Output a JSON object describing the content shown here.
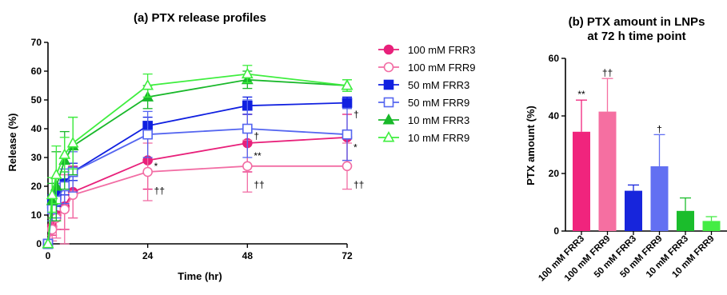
{
  "chart_data": [
    {
      "type": "line",
      "title": "(a) PTX release profiles",
      "xlabel": "Time (hr)",
      "ylabel": "Release (%)",
      "xlim": [
        0,
        72
      ],
      "ylim": [
        0,
        70
      ],
      "xticks": [
        0,
        24,
        48,
        72
      ],
      "yticks": [
        0,
        10,
        20,
        30,
        40,
        50,
        60,
        70
      ],
      "grid": false,
      "legend_position": "right",
      "x": [
        0,
        1,
        2,
        4,
        6,
        24,
        48,
        72
      ],
      "series": [
        {
          "name": "100 mM FRR3",
          "color": "#e8207a",
          "marker": "circle",
          "filled": true,
          "values": [
            0,
            6,
            10,
            13,
            18,
            29,
            35,
            37
          ],
          "errors": [
            0,
            3,
            5,
            8,
            9,
            10,
            10,
            8
          ]
        },
        {
          "name": "100 mM FRR9",
          "color": "#f26da4",
          "marker": "circle",
          "filled": false,
          "values": [
            0,
            5,
            9,
            12,
            17,
            25,
            27,
            27
          ],
          "errors": [
            0,
            4,
            7,
            12,
            8,
            10,
            9,
            8
          ]
        },
        {
          "name": "50 mM FRR3",
          "color": "#1020e0",
          "marker": "square",
          "filled": true,
          "values": [
            0,
            14,
            17,
            21,
            25,
            41,
            48,
            49
          ],
          "errors": [
            0,
            3,
            4,
            4,
            3,
            3,
            3,
            2
          ]
        },
        {
          "name": "50 mM FRR9",
          "color": "#5566f0",
          "marker": "square",
          "filled": false,
          "values": [
            0,
            12,
            15,
            20,
            25,
            38,
            40,
            38
          ],
          "errors": [
            0,
            4,
            6,
            6,
            7,
            8,
            10,
            9
          ]
        },
        {
          "name": "10 mM FRR3",
          "color": "#19b82a",
          "marker": "triangle",
          "filled": true,
          "values": [
            0,
            15,
            20,
            29,
            34,
            51,
            57,
            55
          ],
          "errors": [
            0,
            6,
            12,
            10,
            10,
            4,
            3,
            2
          ]
        },
        {
          "name": "10 mM FRR9",
          "color": "#3fee3f",
          "marker": "triangle",
          "filled": false,
          "values": [
            0,
            17,
            24,
            31,
            35,
            55,
            59,
            55
          ],
          "errors": [
            0,
            6,
            10,
            6,
            9,
            4,
            3,
            2
          ]
        }
      ],
      "annotations": [
        {
          "text": "*",
          "x": 24,
          "y": 27,
          "placement": "right"
        },
        {
          "text": "††",
          "x": 24,
          "y": 18.5,
          "placement": "right"
        },
        {
          "text": "†",
          "x": 48,
          "y": 37.5,
          "placement": "right"
        },
        {
          "text": "**",
          "x": 48,
          "y": 30.5,
          "placement": "right"
        },
        {
          "text": "††",
          "x": 48,
          "y": 20.5,
          "placement": "right"
        },
        {
          "text": "†",
          "x": 72,
          "y": 45,
          "placement": "right"
        },
        {
          "text": "*",
          "x": 72,
          "y": 33.5,
          "placement": "right"
        },
        {
          "text": "††",
          "x": 72,
          "y": 20.5,
          "placement": "right"
        }
      ]
    },
    {
      "type": "bar",
      "title": "(b) PTX amount in LNPs",
      "subtitle": "at 72 h time point",
      "xlabel": "",
      "ylabel": "PTX amount (%)",
      "ylim": [
        0,
        60
      ],
      "yticks": [
        0,
        20,
        40,
        60
      ],
      "grid": false,
      "categories": [
        "100 mM FRR3",
        "100 mM FRR9",
        "50 mM FRR3",
        "50 mM FRR9",
        "10 mM FRR3",
        "10 mM FRR9"
      ],
      "values": [
        34.5,
        41.5,
        14,
        22.5,
        7,
        3.5
      ],
      "errors": [
        11,
        11.5,
        2,
        11,
        4.5,
        1.5
      ],
      "colors": [
        "#f0247d",
        "#f56fa1",
        "#1725dc",
        "#6270f2",
        "#1bbd2c",
        "#44ec44"
      ],
      "annotations": [
        {
          "text": "**",
          "category": 0
        },
        {
          "text": "††",
          "category": 1
        },
        {
          "text": "†",
          "category": 3
        }
      ]
    }
  ]
}
